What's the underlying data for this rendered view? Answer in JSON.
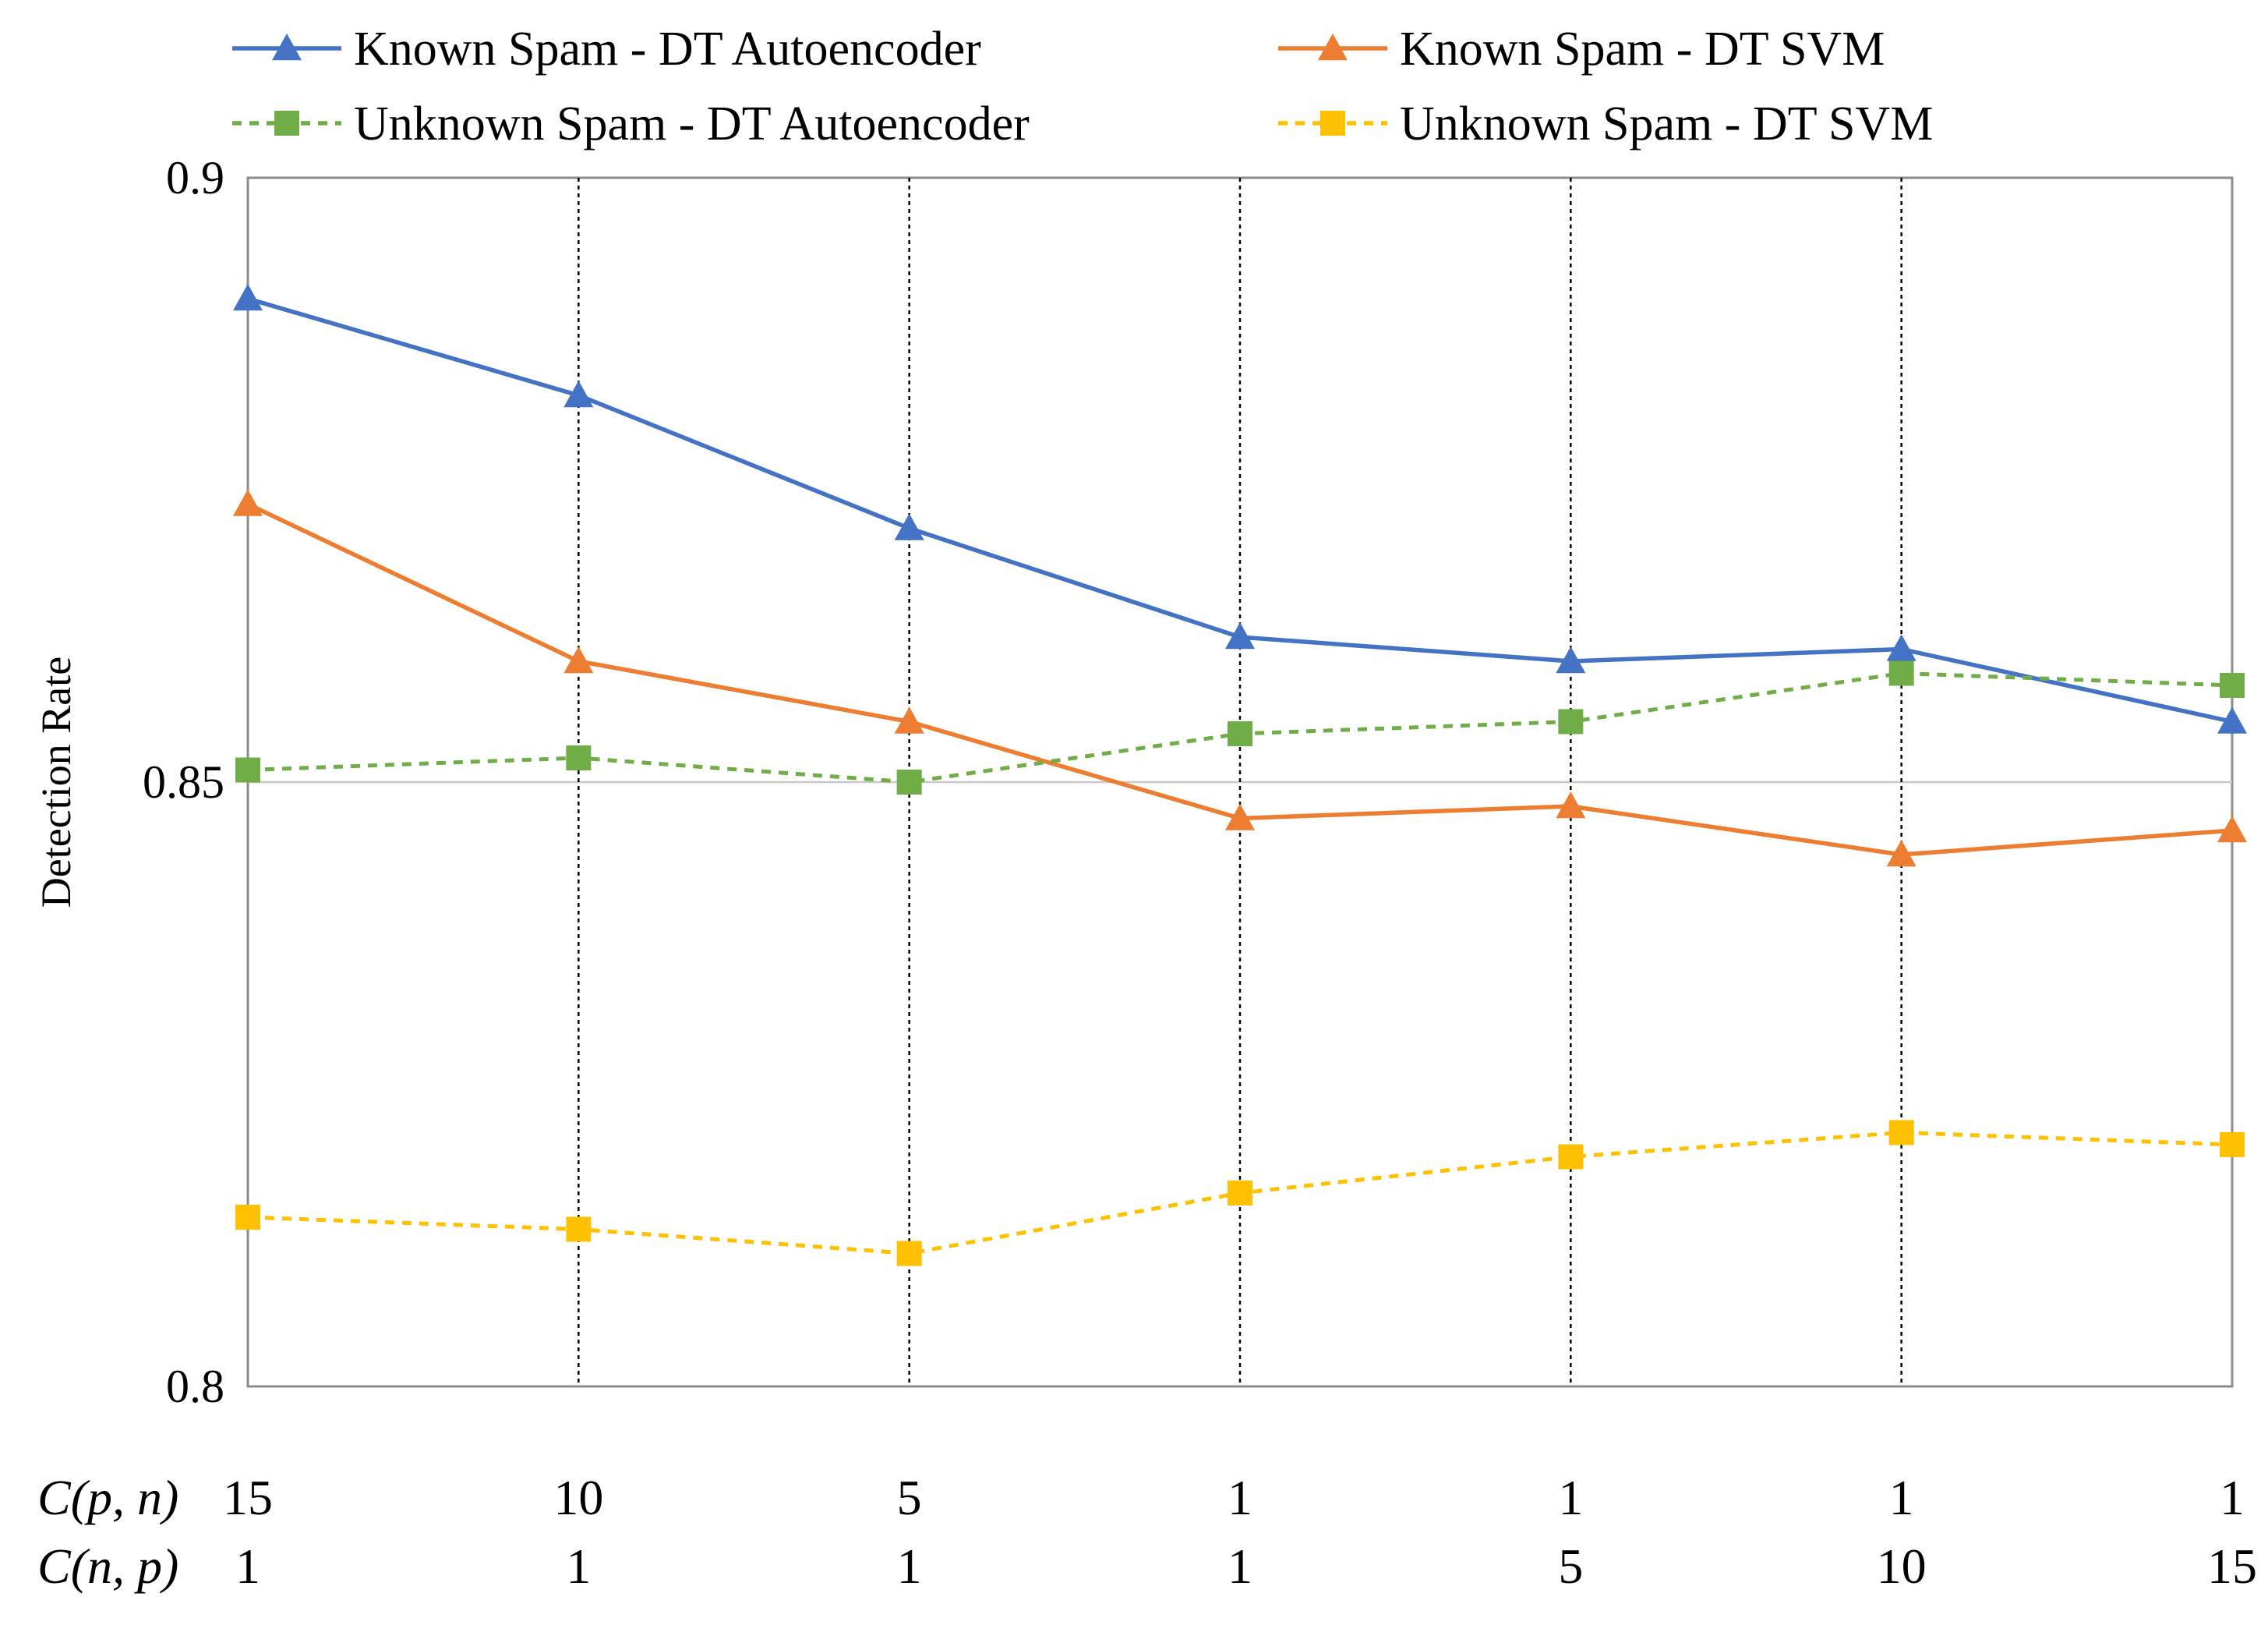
{
  "chart_data": {
    "type": "line",
    "title": "",
    "xlabel": "",
    "ylabel": "Detection Rate",
    "ylim": [
      0.8,
      0.9
    ],
    "yticks": [
      "0.8",
      "0.85",
      "0.9"
    ],
    "category_rows": [
      {
        "label": "C(p, n)",
        "values": [
          "15",
          "10",
          "5",
          "1",
          "1",
          "1",
          "1"
        ]
      },
      {
        "label": "C(n, p)",
        "values": [
          "1",
          "1",
          "1",
          "1",
          "5",
          "10",
          "15"
        ]
      }
    ],
    "series": [
      {
        "name": "Known Spam - DT Autoencoder",
        "color": "#4472C4",
        "style": "solid",
        "marker": "triangle",
        "values": [
          0.89,
          0.882,
          0.871,
          0.862,
          0.86,
          0.861,
          0.855
        ]
      },
      {
        "name": "Known Spam - DT SVM",
        "color": "#ED7D31",
        "style": "solid",
        "marker": "triangle",
        "values": [
          0.873,
          0.86,
          0.855,
          0.847,
          0.848,
          0.844,
          0.846
        ]
      },
      {
        "name": "Unknown Spam - DT Autoencoder",
        "color": "#70AD47",
        "style": "dashed",
        "marker": "square",
        "values": [
          0.851,
          0.852,
          0.85,
          0.854,
          0.855,
          0.859,
          0.858
        ]
      },
      {
        "name": "Unknown Spam - DT SVM",
        "color": "#FFC000",
        "style": "dashed",
        "marker": "square",
        "values": [
          0.814,
          0.813,
          0.811,
          0.816,
          0.819,
          0.821,
          0.82
        ]
      }
    ],
    "grid": {
      "horizontal_mid": true,
      "vertical": "dotted"
    },
    "legend_position": "top"
  }
}
